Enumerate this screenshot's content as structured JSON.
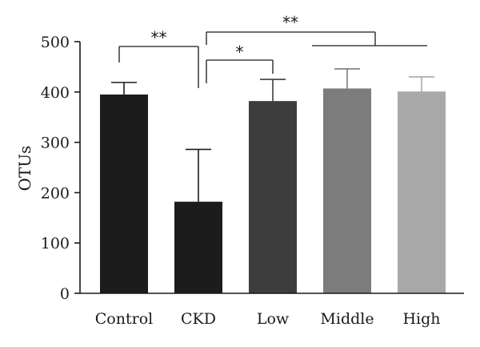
{
  "chart_data": {
    "type": "bar",
    "categories": [
      "Control",
      "CKD",
      "Low",
      "Middle",
      "High"
    ],
    "values": [
      395,
      182,
      382,
      407,
      401
    ],
    "errors": [
      24,
      104,
      43,
      39,
      29
    ],
    "colors": [
      "#1c1c1c",
      "#1c1c1c",
      "#3d3d3d",
      "#7c7c7c",
      "#a8a8a8"
    ],
    "ylabel": "OTUs",
    "xlabel": "",
    "ylim": [
      0,
      500
    ],
    "yticks": [
      0,
      100,
      200,
      300,
      400,
      500
    ],
    "grid": false,
    "annotations": [
      {
        "label": "**",
        "from": "Control",
        "to": "CKD"
      },
      {
        "label": "*",
        "from": "CKD",
        "to": "Low"
      },
      {
        "label": "**",
        "from": "CKD",
        "to": [
          "Middle",
          "High"
        ]
      }
    ]
  }
}
